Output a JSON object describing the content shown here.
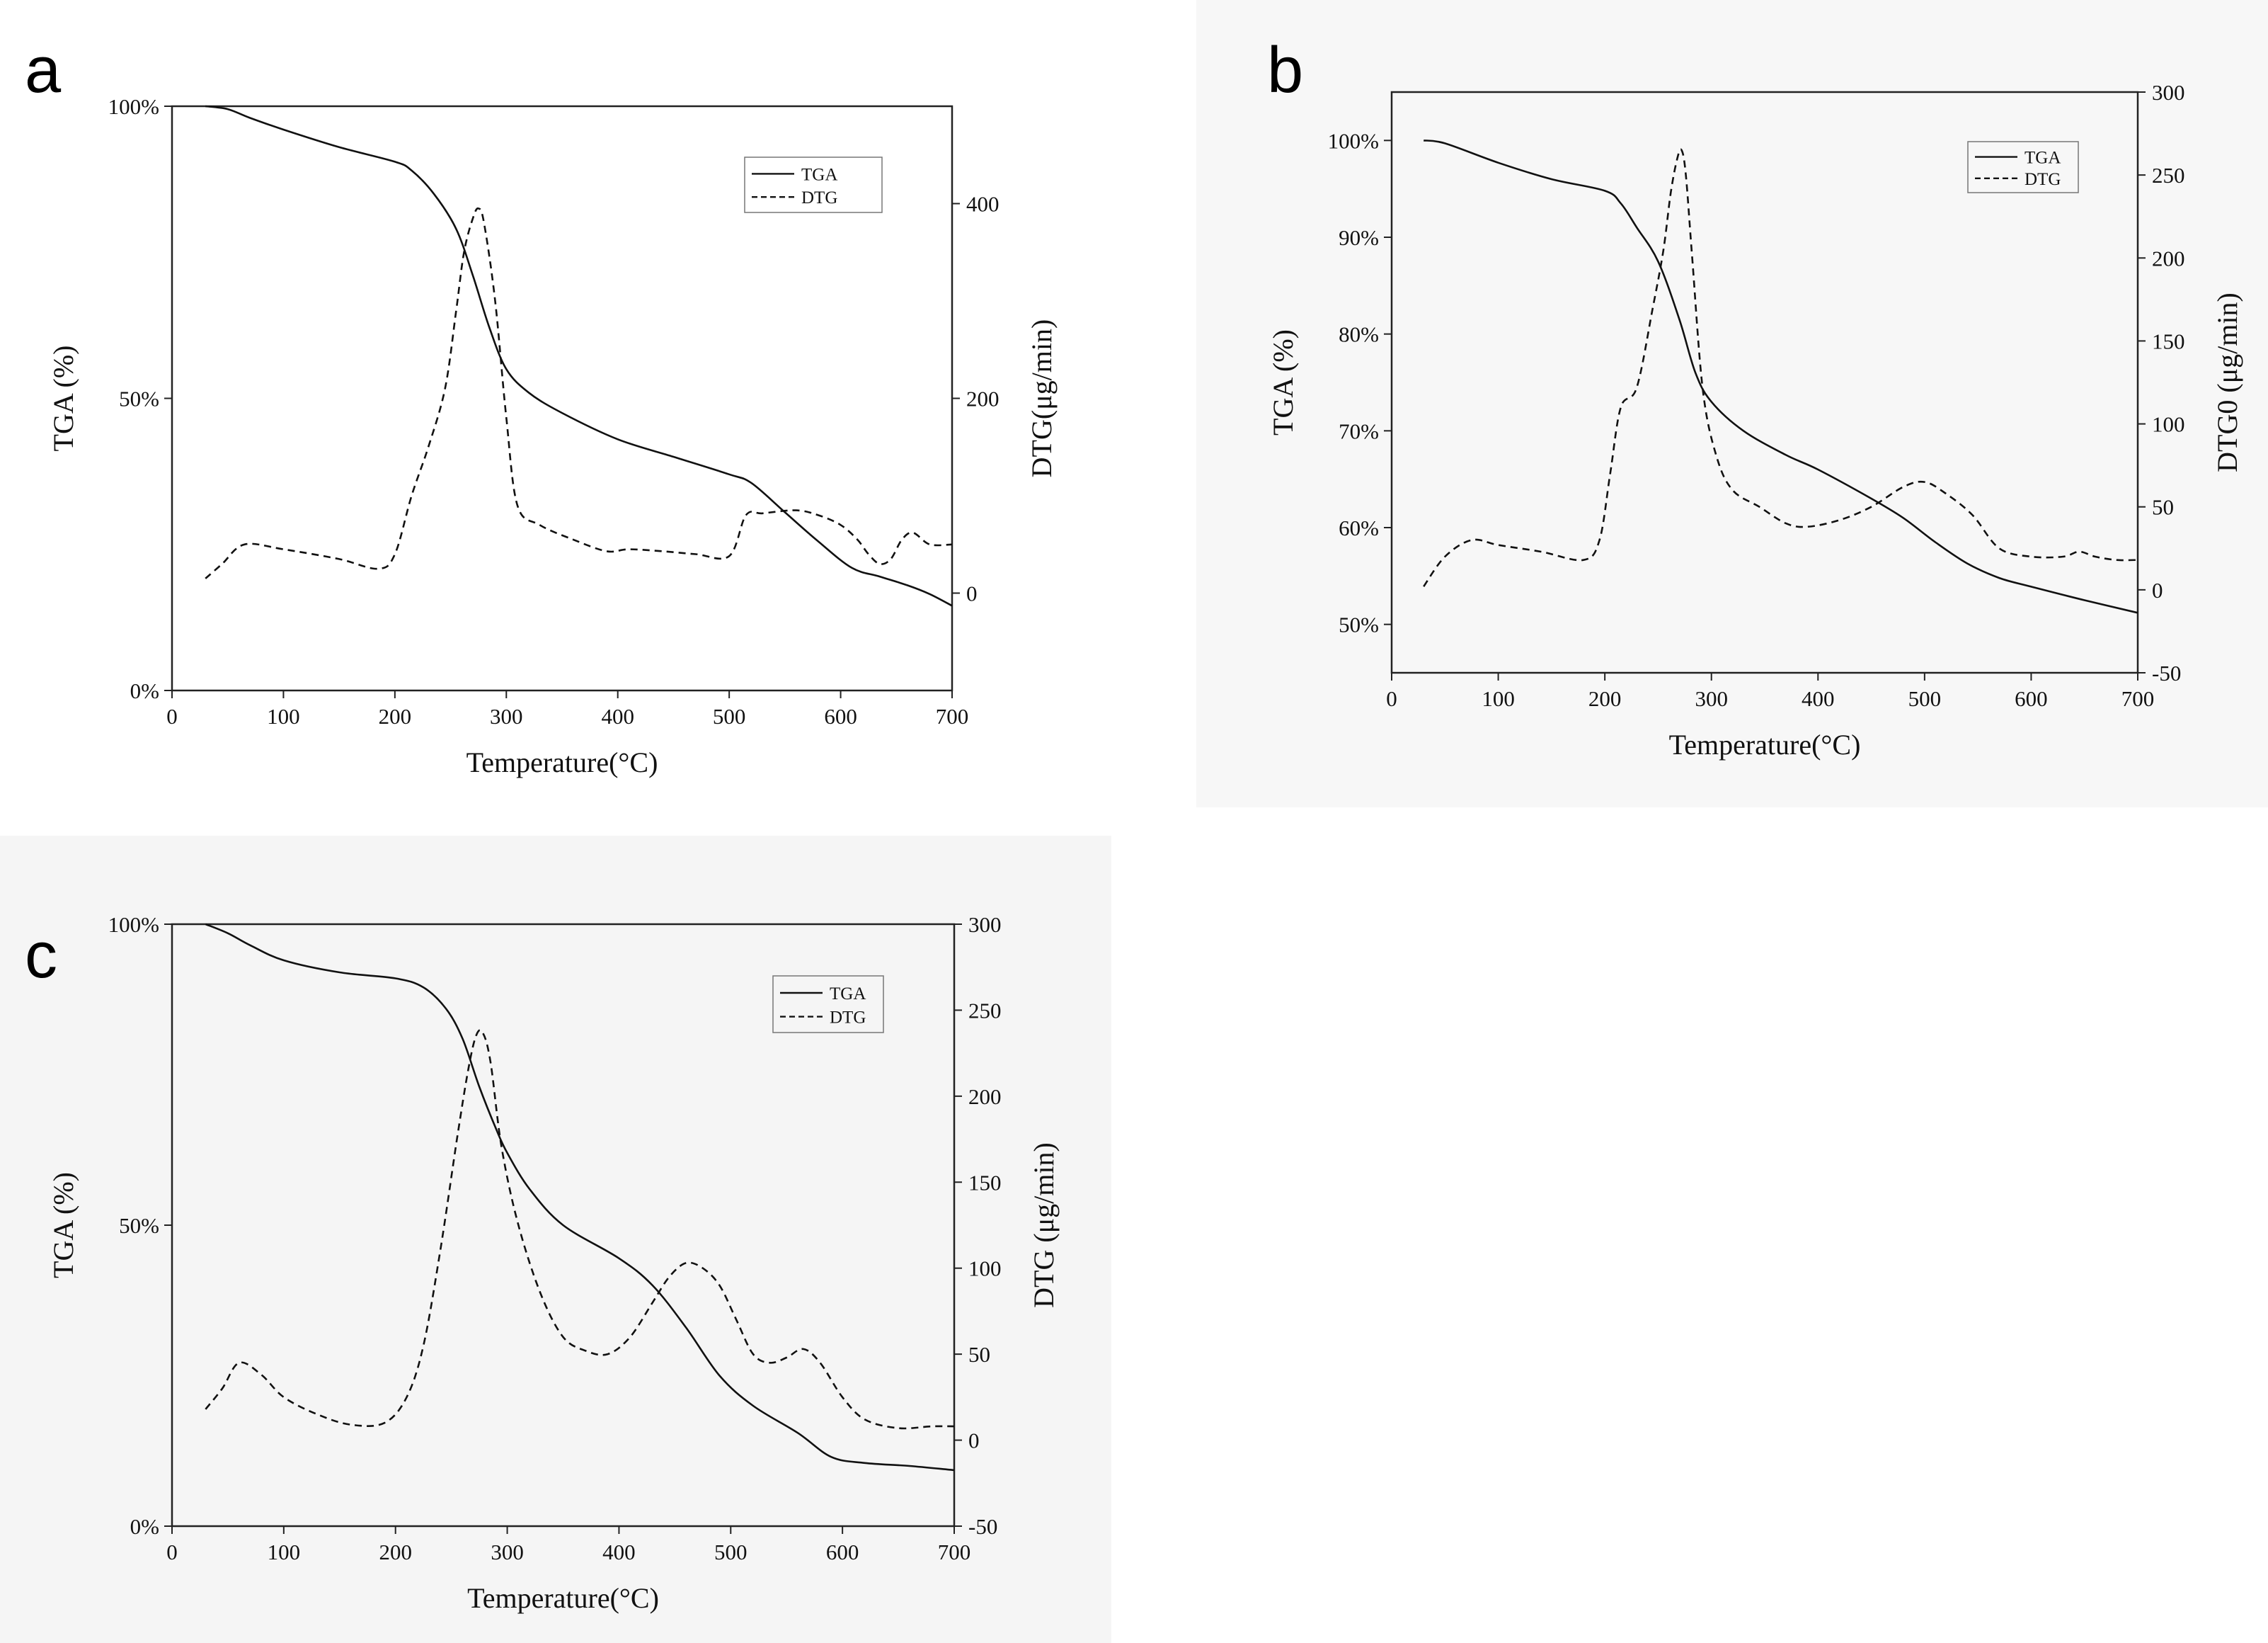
{
  "chart_data": [
    {
      "panel": "a",
      "type": "line",
      "xlabel": "Temperature(°C)",
      "ylabel": "TGA (%)",
      "y2label": "DTG(μg/min)",
      "xlim": [
        0,
        700
      ],
      "ylim": [
        0,
        100
      ],
      "y2lim": [
        -100,
        500
      ],
      "xticks": [
        0,
        100,
        200,
        300,
        400,
        500,
        600,
        700
      ],
      "yticks": [
        0,
        50,
        100
      ],
      "ytick_labels": [
        "0%",
        "50%",
        "100%"
      ],
      "y2ticks": [
        0,
        200,
        400
      ],
      "legend_position": "top-right",
      "grid": false,
      "series": [
        {
          "name": "TGA",
          "axis": "left",
          "style": "solid",
          "x": [
            30,
            50,
            70,
            100,
            150,
            200,
            215,
            235,
            255,
            270,
            285,
            300,
            320,
            350,
            400,
            450,
            500,
            520,
            550,
            580,
            610,
            635,
            660,
            680,
            700
          ],
          "y": [
            100,
            99.5,
            98,
            96,
            93,
            90.5,
            89,
            85,
            79,
            71,
            62,
            55,
            51,
            47.5,
            43,
            40,
            37,
            35.5,
            30.5,
            25.5,
            21,
            19.5,
            18,
            16.5,
            14.5
          ]
        },
        {
          "name": "DTG",
          "axis": "right",
          "style": "dashed",
          "x": [
            30,
            45,
            65,
            100,
            150,
            185,
            200,
            215,
            230,
            245,
            255,
            262,
            270,
            275,
            280,
            290,
            300,
            310,
            330,
            360,
            390,
            410,
            440,
            470,
            500,
            515,
            530,
            560,
            580,
            600,
            615,
            625,
            635,
            645,
            655,
            665,
            680,
            700
          ],
          "y": [
            15,
            30,
            50,
            45,
            35,
            25,
            40,
            100,
            150,
            210,
            290,
            350,
            385,
            395,
            380,
            300,
            180,
            90,
            70,
            55,
            43,
            45,
            43,
            40,
            38,
            80,
            82,
            85,
            80,
            70,
            55,
            40,
            30,
            35,
            55,
            62,
            50,
            50
          ]
        }
      ]
    },
    {
      "panel": "b",
      "type": "line",
      "xlabel": "Temperature(°C)",
      "ylabel": "TGA (%)",
      "y2label": "DTG0 (μg/min)",
      "xlim": [
        0,
        700
      ],
      "ylim": [
        45,
        105
      ],
      "y2lim": [
        -50,
        300
      ],
      "xticks": [
        0,
        100,
        200,
        300,
        400,
        500,
        600,
        700
      ],
      "yticks": [
        50,
        60,
        70,
        80,
        90,
        100
      ],
      "ytick_labels": [
        "50%",
        "60%",
        "70%",
        "80%",
        "90%",
        "100%"
      ],
      "y2ticks": [
        -50,
        0,
        50,
        100,
        150,
        200,
        250,
        300
      ],
      "legend_position": "top-right",
      "grid": false,
      "series": [
        {
          "name": "TGA",
          "axis": "left",
          "style": "solid",
          "x": [
            30,
            50,
            100,
            150,
            200,
            215,
            230,
            250,
            270,
            285,
            300,
            330,
            370,
            400,
            450,
            480,
            510,
            540,
            570,
            600,
            650,
            700
          ],
          "y": [
            100,
            99.7,
            97.7,
            96,
            94.8,
            93.5,
            91,
            87.5,
            81.5,
            76,
            73,
            70,
            67.5,
            66,
            63,
            61,
            58.5,
            56.3,
            54.8,
            53.9,
            52.5,
            51.2
          ]
        },
        {
          "name": "DTG",
          "axis": "right",
          "style": "dashed",
          "x": [
            30,
            50,
            75,
            100,
            140,
            180,
            195,
            205,
            215,
            230,
            245,
            255,
            262,
            268,
            272,
            276,
            282,
            292,
            305,
            320,
            345,
            370,
            390,
            420,
            450,
            480,
            500,
            520,
            545,
            570,
            600,
            630,
            645,
            660,
            680,
            700
          ],
          "y": [
            2,
            20,
            30,
            27,
            23,
            18,
            30,
            70,
            110,
            122,
            170,
            205,
            240,
            260,
            265,
            250,
            200,
            120,
            80,
            60,
            50,
            40,
            38,
            42,
            50,
            62,
            65,
            58,
            45,
            25,
            20,
            20,
            23,
            20,
            18,
            18
          ]
        }
      ]
    },
    {
      "panel": "c",
      "type": "line",
      "xlabel": "Temperature(°C)",
      "ylabel": "TGA (%)",
      "y2label": "DTG (μg/min)",
      "xlim": [
        0,
        700
      ],
      "ylim": [
        0,
        100
      ],
      "y2lim": [
        -50,
        300
      ],
      "xticks": [
        0,
        100,
        200,
        300,
        400,
        500,
        600,
        700
      ],
      "yticks": [
        0,
        50,
        100
      ],
      "ytick_labels": [
        "0%",
        "50%",
        "100%"
      ],
      "y2ticks": [
        -50,
        0,
        50,
        100,
        150,
        200,
        250,
        300
      ],
      "legend_position": "top-right",
      "grid": false,
      "series": [
        {
          "name": "TGA",
          "axis": "left",
          "style": "solid",
          "x": [
            30,
            50,
            70,
            100,
            150,
            200,
            225,
            245,
            260,
            275,
            290,
            300,
            320,
            350,
            400,
            430,
            460,
            490,
            520,
            560,
            590,
            620,
            660,
            700
          ],
          "y": [
            100,
            98.5,
            96.5,
            94,
            92,
            91,
            89.5,
            86,
            81,
            73,
            66,
            62,
            56,
            50,
            44.5,
            40,
            33,
            25,
            20,
            15.5,
            11.5,
            10.5,
            10,
            9.3
          ]
        },
        {
          "name": "DTG",
          "axis": "right",
          "style": "dashed",
          "x": [
            30,
            45,
            60,
            80,
            100,
            130,
            160,
            190,
            210,
            225,
            240,
            255,
            265,
            272,
            278,
            285,
            295,
            310,
            330,
            350,
            370,
            390,
            410,
            430,
            445,
            460,
            475,
            490,
            505,
            520,
            535,
            550,
            565,
            580,
            600,
            620,
            650,
            680,
            700
          ],
          "y": [
            18,
            30,
            45,
            38,
            25,
            15,
            9,
            10,
            25,
            55,
            110,
            175,
            215,
            235,
            237,
            220,
            170,
            125,
            85,
            60,
            52,
            50,
            60,
            80,
            95,
            103,
            100,
            90,
            70,
            50,
            45,
            48,
            53,
            45,
            25,
            12,
            7,
            8,
            8
          ]
        }
      ]
    }
  ]
}
